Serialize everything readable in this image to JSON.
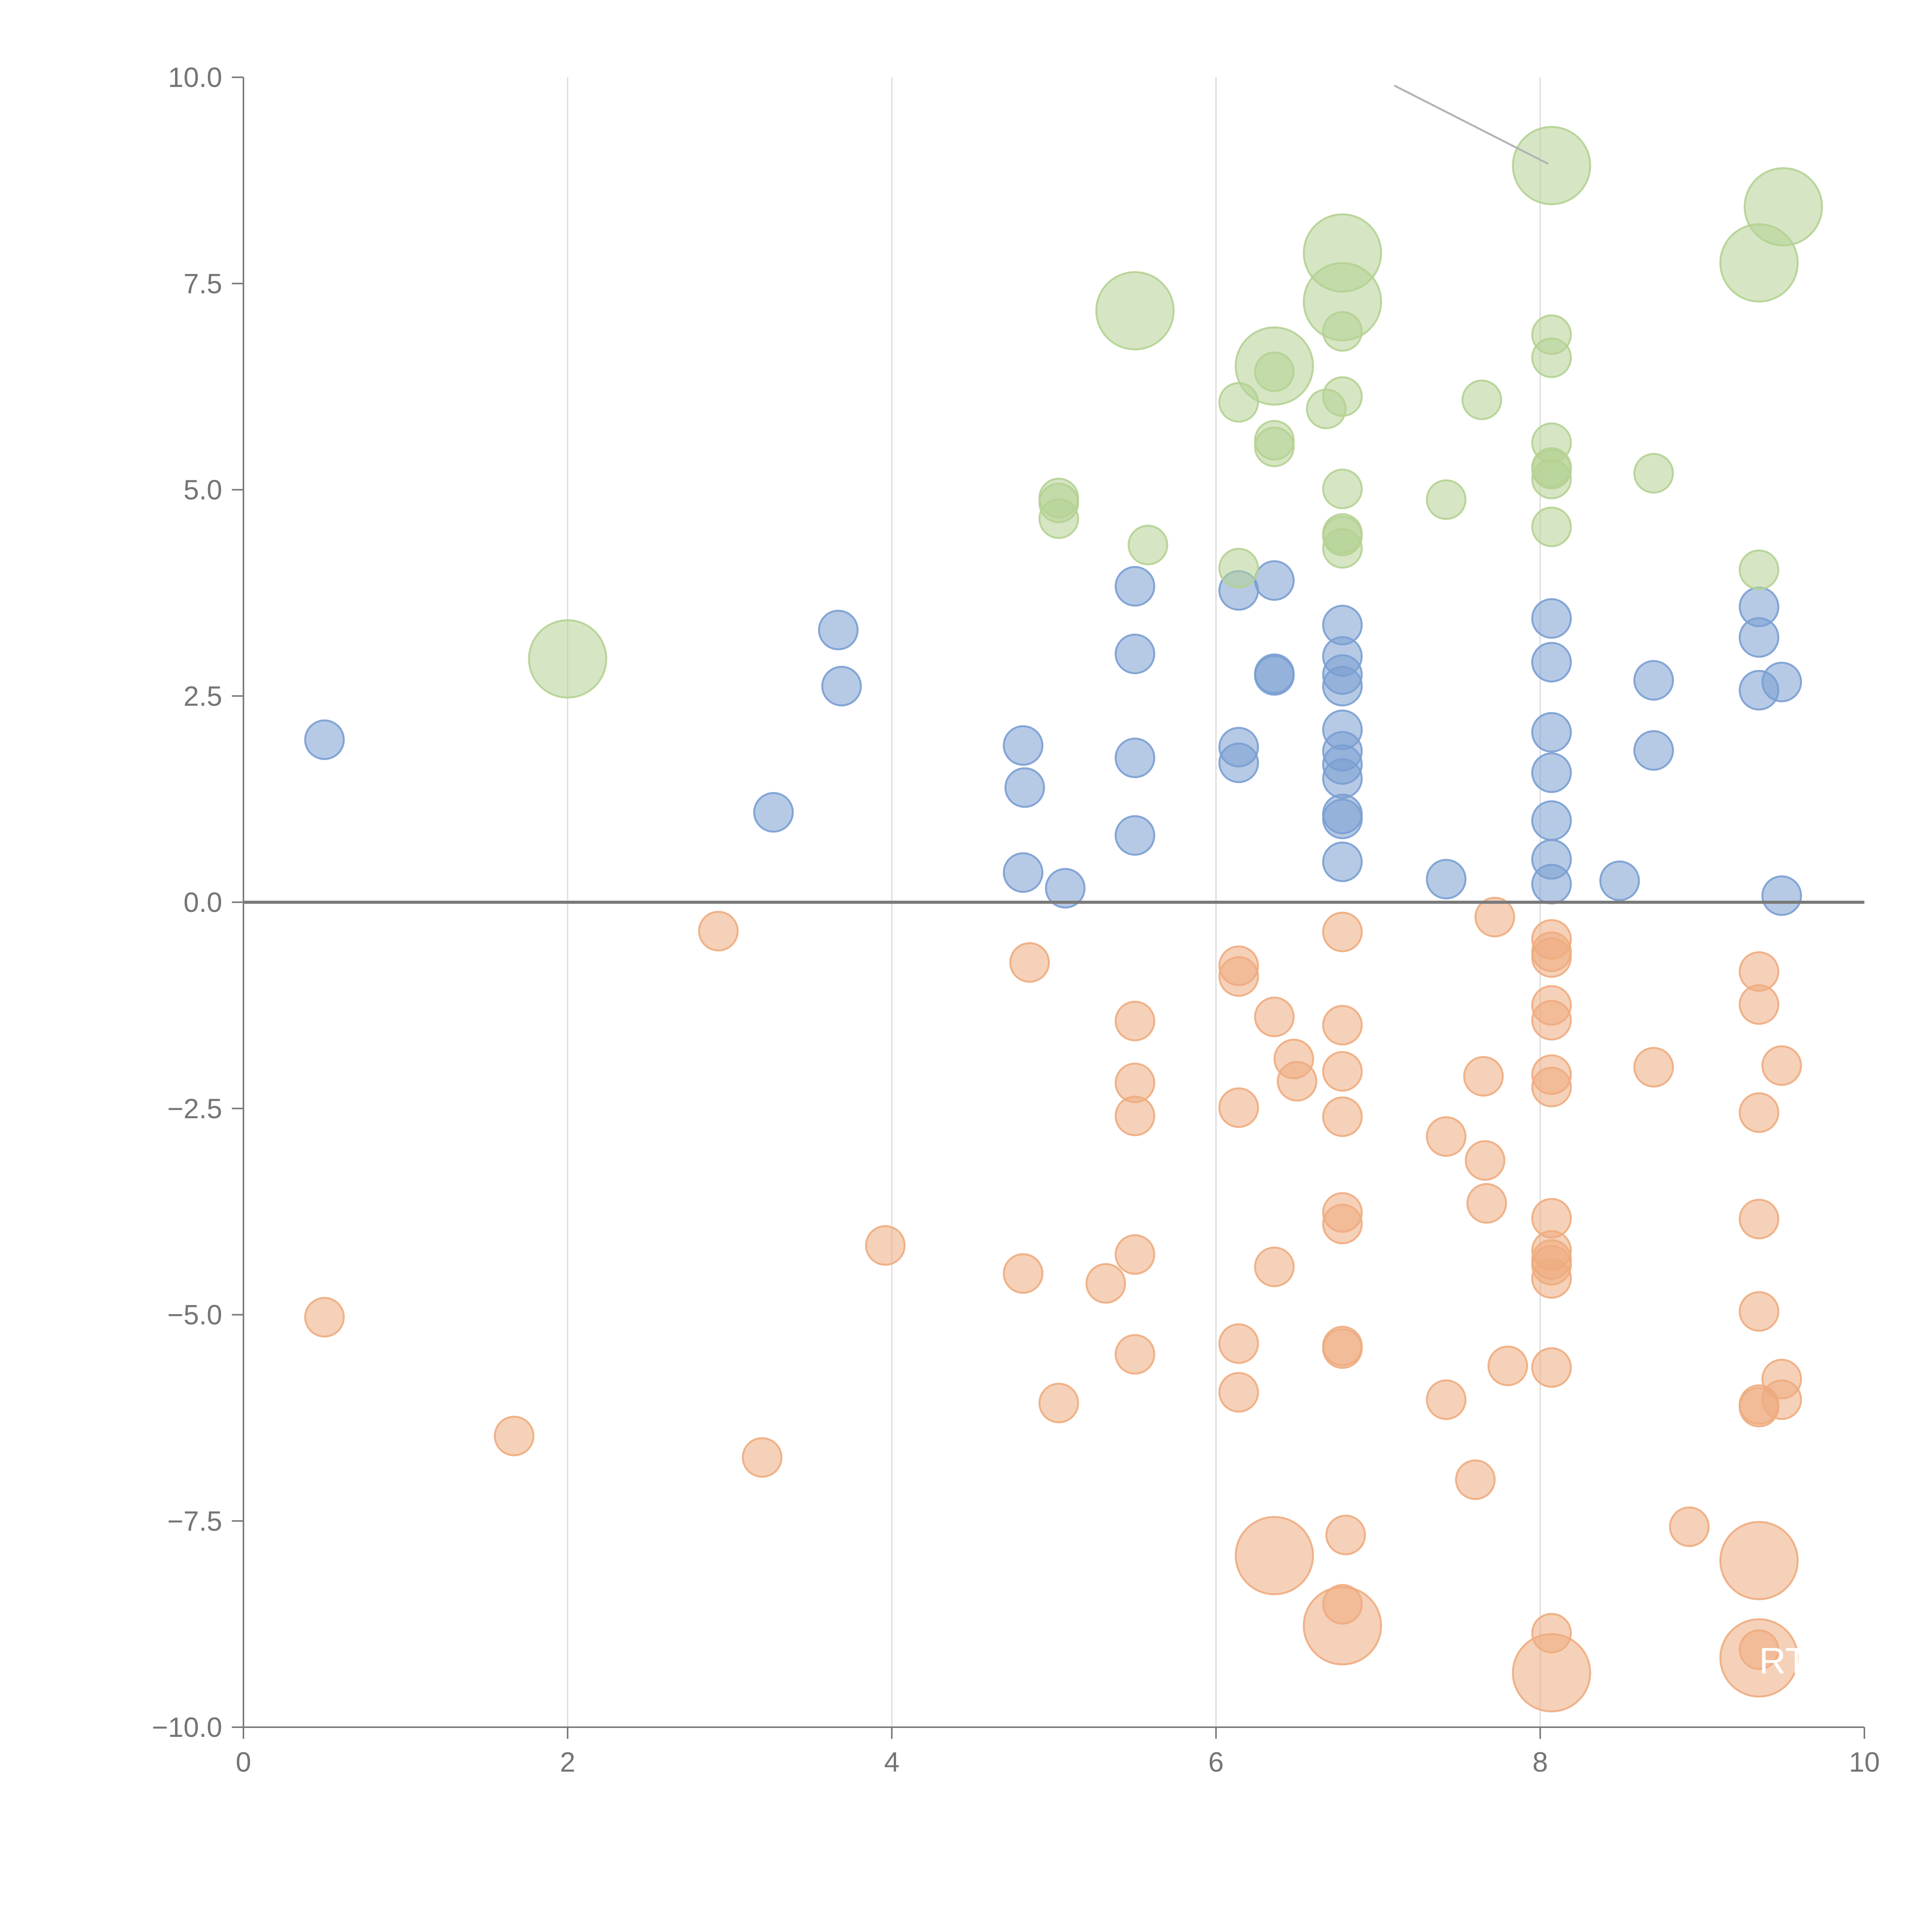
{
  "chart_data": {
    "type": "scatter",
    "title": "",
    "xlabel": "",
    "ylabel": "",
    "xlim": [
      0,
      10
    ],
    "ylim": [
      -10,
      10
    ],
    "grid": "vertical",
    "legend": "none",
    "x_ticks": [
      "0",
      "2",
      "4",
      "6",
      "8",
      "10"
    ],
    "x_tick_values": [
      0,
      2,
      4,
      6,
      8,
      10
    ],
    "y_ticks": [
      "10.0",
      "7.5",
      "5.0",
      "2.5",
      "0.0",
      "−2.5",
      "−5.0",
      "−7.5",
      "−10.0"
    ],
    "y_tick_values": [
      10,
      7.5,
      5,
      2.5,
      0,
      -2.5,
      -5,
      -7.5,
      -10
    ],
    "reference_line_y": 0,
    "annotation_segment": {
      "from": [
        7.1,
        9.9
      ],
      "to": [
        8.05,
        8.95
      ]
    },
    "hint_text": "RT",
    "hint_text_at": [
      9.35,
      -9.35
    ],
    "series": [
      {
        "name": "blue",
        "color": "#7a9fd1",
        "points": [
          [
            0.5,
            1.97,
            1
          ],
          [
            3.27,
            1.09,
            1
          ],
          [
            3.67,
            3.3,
            1
          ],
          [
            3.69,
            2.62,
            1
          ],
          [
            4.81,
            1.9,
            1
          ],
          [
            4.82,
            1.39,
            1
          ],
          [
            4.81,
            0.36,
            1
          ],
          [
            5.07,
            0.17,
            1
          ],
          [
            5.5,
            3.83,
            1
          ],
          [
            5.5,
            3.01,
            1
          ],
          [
            5.5,
            1.75,
            1
          ],
          [
            5.5,
            0.81,
            1
          ],
          [
            6.14,
            3.78,
            1
          ],
          [
            6.14,
            1.88,
            1
          ],
          [
            6.14,
            1.69,
            1
          ],
          [
            6.36,
            3.9,
            1
          ],
          [
            6.36,
            2.75,
            1
          ],
          [
            6.36,
            2.77,
            1
          ],
          [
            6.78,
            3.36,
            1
          ],
          [
            6.78,
            2.98,
            1
          ],
          [
            6.78,
            2.76,
            1
          ],
          [
            6.78,
            2.62,
            1
          ],
          [
            6.78,
            2.09,
            1
          ],
          [
            6.78,
            1.83,
            1
          ],
          [
            6.78,
            1.67,
            1
          ],
          [
            6.78,
            1.5,
            1
          ],
          [
            6.78,
            1.07,
            1
          ],
          [
            6.78,
            1.01,
            1
          ],
          [
            6.78,
            0.49,
            1
          ],
          [
            7.42,
            0.28,
            1
          ],
          [
            8.07,
            3.44,
            1
          ],
          [
            8.07,
            2.91,
            1
          ],
          [
            8.07,
            2.06,
            1
          ],
          [
            8.07,
            1.57,
            1
          ],
          [
            8.07,
            0.99,
            1
          ],
          [
            8.07,
            0.52,
            1
          ],
          [
            8.07,
            0.22,
            1
          ],
          [
            8.49,
            0.26,
            1
          ],
          [
            8.7,
            2.69,
            1
          ],
          [
            8.7,
            1.84,
            1
          ],
          [
            9.35,
            3.58,
            1
          ],
          [
            9.35,
            3.21,
            1
          ],
          [
            9.35,
            2.57,
            1
          ],
          [
            9.49,
            2.67,
            1
          ],
          [
            9.49,
            0.08,
            1
          ]
        ]
      },
      {
        "name": "green",
        "color": "#b5d193",
        "points": [
          [
            2.0,
            2.95,
            2
          ],
          [
            5.5,
            7.17,
            2
          ],
          [
            6.36,
            6.5,
            2
          ],
          [
            6.78,
            7.87,
            2
          ],
          [
            6.78,
            7.28,
            2
          ],
          [
            8.07,
            8.93,
            2
          ],
          [
            9.35,
            7.75,
            2
          ],
          [
            9.5,
            8.43,
            2
          ],
          [
            5.03,
            4.84,
            1
          ],
          [
            5.03,
            4.65,
            1
          ],
          [
            5.03,
            4.9,
            1
          ],
          [
            5.58,
            4.33,
            1
          ],
          [
            6.14,
            6.06,
            1
          ],
          [
            6.14,
            4.05,
            1
          ],
          [
            6.36,
            6.43,
            1
          ],
          [
            6.36,
            5.6,
            1
          ],
          [
            6.36,
            5.52,
            1
          ],
          [
            6.68,
            5.98,
            1
          ],
          [
            6.78,
            6.92,
            1
          ],
          [
            6.78,
            6.13,
            1
          ],
          [
            6.78,
            5.01,
            1
          ],
          [
            6.78,
            4.47,
            1
          ],
          [
            6.78,
            4.44,
            1
          ],
          [
            6.78,
            4.29,
            1
          ],
          [
            7.42,
            4.88,
            1
          ],
          [
            7.64,
            6.09,
            1
          ],
          [
            8.07,
            6.88,
            1
          ],
          [
            8.07,
            6.6,
            1
          ],
          [
            8.07,
            5.57,
            1
          ],
          [
            8.07,
            5.27,
            1
          ],
          [
            8.07,
            5.25,
            1
          ],
          [
            8.07,
            5.13,
            1
          ],
          [
            8.07,
            4.55,
            1
          ],
          [
            8.7,
            5.2,
            1
          ],
          [
            9.35,
            4.03,
            1
          ]
        ]
      },
      {
        "name": "orange",
        "color": "#eeac7f",
        "points": [
          [
            6.36,
            -7.92,
            2
          ],
          [
            6.78,
            -8.77,
            2
          ],
          [
            8.07,
            -9.34,
            2
          ],
          [
            9.35,
            -7.98,
            2
          ],
          [
            9.35,
            -9.16,
            2
          ],
          [
            0.5,
            -5.03,
            1
          ],
          [
            1.67,
            -6.47,
            1
          ],
          [
            2.93,
            -0.35,
            1
          ],
          [
            3.2,
            -6.73,
            1
          ],
          [
            3.96,
            -4.16,
            1
          ],
          [
            4.81,
            -4.5,
            1
          ],
          [
            4.85,
            -0.73,
            1
          ],
          [
            5.03,
            -6.07,
            1
          ],
          [
            5.32,
            -4.62,
            1
          ],
          [
            5.5,
            -1.44,
            1
          ],
          [
            5.5,
            -2.19,
            1
          ],
          [
            5.5,
            -2.59,
            1
          ],
          [
            5.5,
            -4.27,
            1
          ],
          [
            5.5,
            -5.48,
            1
          ],
          [
            6.14,
            -0.77,
            1
          ],
          [
            6.14,
            -0.9,
            1
          ],
          [
            6.14,
            -2.49,
            1
          ],
          [
            6.14,
            -5.35,
            1
          ],
          [
            6.14,
            -5.94,
            1
          ],
          [
            6.36,
            -1.39,
            1
          ],
          [
            6.36,
            -4.42,
            1
          ],
          [
            6.48,
            -1.9,
            1
          ],
          [
            6.5,
            -2.17,
            1
          ],
          [
            6.78,
            -0.36,
            1
          ],
          [
            6.78,
            -1.49,
            1
          ],
          [
            6.78,
            -2.05,
            1
          ],
          [
            6.78,
            -2.6,
            1
          ],
          [
            6.78,
            -3.76,
            1
          ],
          [
            6.78,
            -3.9,
            1
          ],
          [
            6.78,
            -5.38,
            1
          ],
          [
            6.78,
            -5.41,
            1
          ],
          [
            6.8,
            -7.67,
            1
          ],
          [
            6.78,
            -8.51,
            1
          ],
          [
            7.42,
            -2.84,
            1
          ],
          [
            7.42,
            -6.03,
            1
          ],
          [
            7.6,
            -7.0,
            1
          ],
          [
            7.65,
            -2.11,
            1
          ],
          [
            7.66,
            -3.13,
            1
          ],
          [
            7.67,
            -3.65,
            1
          ],
          [
            7.72,
            -0.18,
            1
          ],
          [
            7.8,
            -5.62,
            1
          ],
          [
            8.07,
            -0.45,
            1
          ],
          [
            8.07,
            -0.6,
            1
          ],
          [
            8.07,
            -0.67,
            1
          ],
          [
            8.07,
            -1.25,
            1
          ],
          [
            8.07,
            -1.43,
            1
          ],
          [
            8.07,
            -2.09,
            1
          ],
          [
            8.07,
            -2.24,
            1
          ],
          [
            8.07,
            -3.83,
            1
          ],
          [
            8.07,
            -4.22,
            1
          ],
          [
            8.07,
            -4.33,
            1
          ],
          [
            8.07,
            -4.4,
            1
          ],
          [
            8.07,
            -4.56,
            1
          ],
          [
            8.07,
            -5.64,
            1
          ],
          [
            8.07,
            -8.86,
            1
          ],
          [
            8.7,
            -2.0,
            1
          ],
          [
            8.92,
            -7.57,
            1
          ],
          [
            9.35,
            -0.84,
            1
          ],
          [
            9.35,
            -1.24,
            1
          ],
          [
            9.35,
            -2.55,
            1
          ],
          [
            9.35,
            -3.84,
            1
          ],
          [
            9.35,
            -4.96,
            1
          ],
          [
            9.35,
            -6.09,
            1
          ],
          [
            9.35,
            -6.12,
            1
          ],
          [
            9.35,
            -9.06,
            1
          ],
          [
            9.49,
            -1.98,
            1
          ],
          [
            9.49,
            -5.78,
            1
          ],
          [
            9.49,
            -6.03,
            1
          ]
        ]
      }
    ]
  }
}
